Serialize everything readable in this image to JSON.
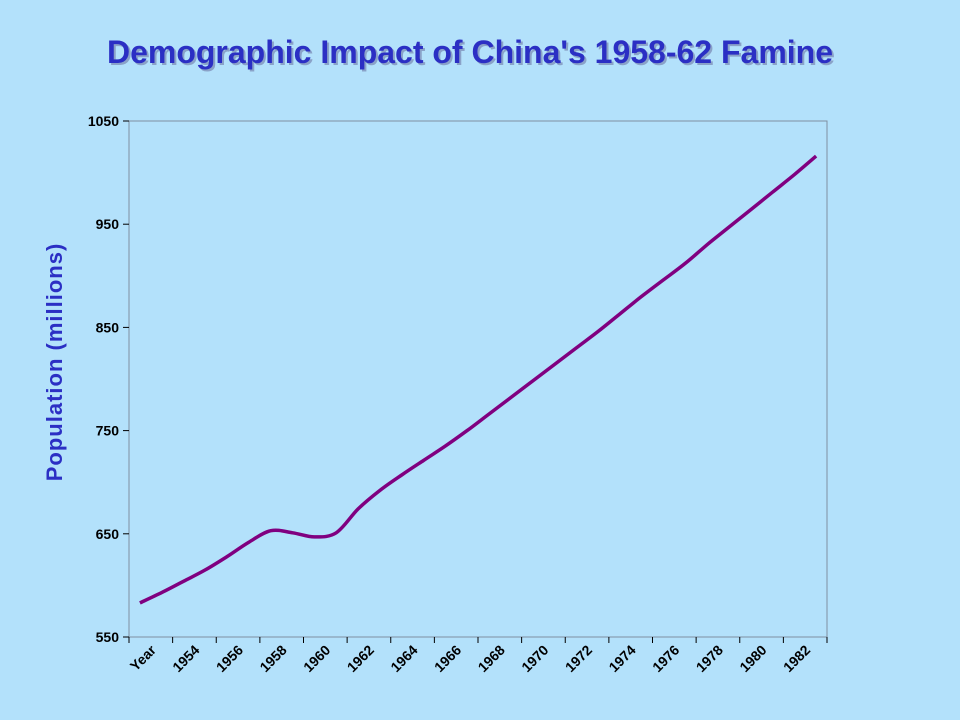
{
  "slide": {
    "title": "Demographic Impact of China's 1958-62 Famine"
  },
  "chart_data": {
    "type": "line",
    "title": "Demographic Impact of China's 1958-62 Famine",
    "xlabel": "",
    "ylabel": "Population (millions)",
    "ylim": [
      550,
      1050
    ],
    "yticks": [
      550,
      650,
      750,
      850,
      950,
      1050
    ],
    "categories": [
      "Year",
      "1954",
      "1956",
      "1958",
      "1960",
      "1962",
      "1964",
      "1966",
      "1968",
      "1970",
      "1972",
      "1974",
      "1976",
      "1978",
      "1980",
      "1982"
    ],
    "grid": false,
    "legend": "none",
    "line_color": "#800080",
    "series": [
      {
        "x": [
          1952,
          1953,
          1954,
          1955,
          1956,
          1957,
          1958,
          1959,
          1960,
          1961,
          1962,
          1963,
          1964,
          1965,
          1966,
          1967,
          1968,
          1969,
          1970,
          1971,
          1972,
          1973,
          1974,
          1975,
          1976,
          1977,
          1978,
          1979,
          1980,
          1981,
          1982,
          1983
        ],
        "values": [
          583,
          593,
          604,
          615,
          628,
          642,
          653,
          651,
          647,
          651,
          674,
          692,
          707,
          721,
          735,
          750,
          766,
          782,
          798,
          814,
          830,
          846,
          863,
          880,
          896,
          912,
          930,
          947,
          964,
          981,
          998,
          1016
        ]
      }
    ]
  }
}
